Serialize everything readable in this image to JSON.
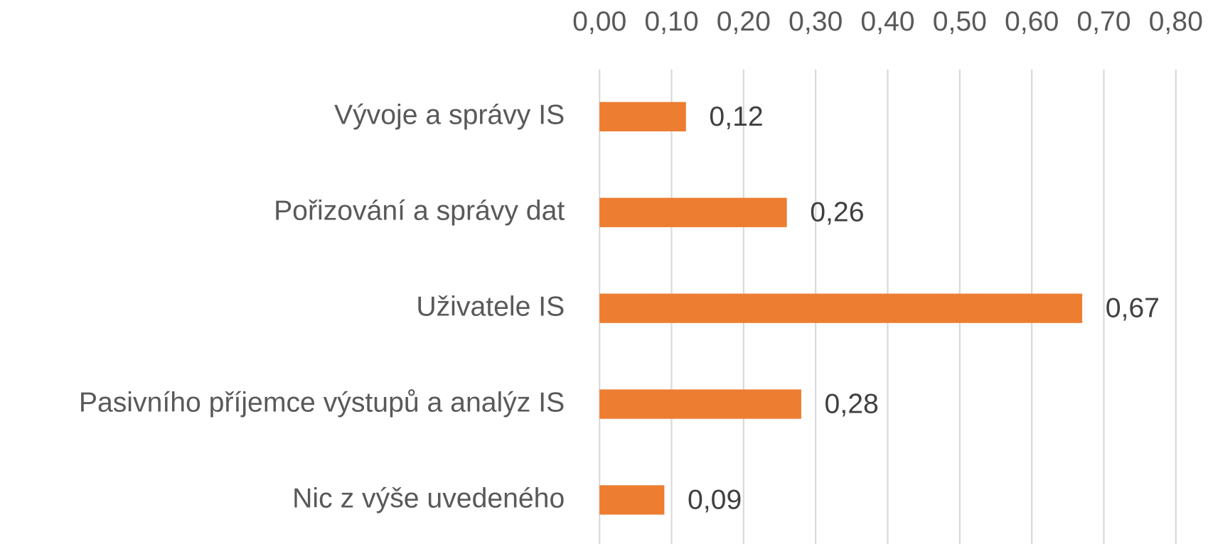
{
  "chart_data": {
    "type": "bar",
    "orientation": "horizontal",
    "categories": [
      "Vývoje a správy IS",
      "Pořizování a správy dat",
      "Uživatele IS",
      "Pasivního příjemce výstupů a analýz IS",
      "Nic z výše uvedeného"
    ],
    "values": [
      0.12,
      0.26,
      0.67,
      0.28,
      0.09
    ],
    "value_labels": [
      "0,12",
      "0,26",
      "0,67",
      "0,28",
      "0,09"
    ],
    "color": "#ed7d31",
    "xlim": [
      0,
      0.8
    ],
    "xticks": [
      {
        "value": 0,
        "label": "0,00"
      },
      {
        "value": 0.1,
        "label": "0,10"
      },
      {
        "value": 0.2,
        "label": "0,20"
      },
      {
        "value": 0.3,
        "label": "0,30"
      },
      {
        "value": 0.4,
        "label": "0,40"
      },
      {
        "value": 0.5,
        "label": "0,50"
      },
      {
        "value": 0.6,
        "label": "0,60"
      },
      {
        "value": 0.7,
        "label": "0,70"
      },
      {
        "value": 0.8,
        "label": "0,80"
      }
    ],
    "grid": true
  }
}
